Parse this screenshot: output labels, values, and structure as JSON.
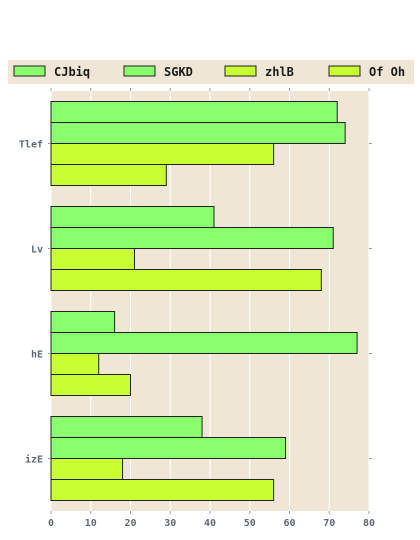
{
  "chart_data": {
    "type": "bar",
    "orientation": "horizontal",
    "categories": [
      "Tlef",
      "Lv",
      "hE",
      "izE"
    ],
    "series": [
      {
        "name": "CJbiq",
        "values": [
          72,
          41,
          16,
          38
        ],
        "color": "#8aff6e"
      },
      {
        "name": "SGKD",
        "values": [
          74,
          71,
          77,
          59
        ],
        "color": "#8aff6e"
      },
      {
        "name": "zhlB",
        "values": [
          56,
          21,
          12,
          18
        ],
        "color": "#c8ff33"
      },
      {
        "name": "Of Oh",
        "values": [
          29,
          68,
          20,
          56
        ],
        "color": "#c8ff33"
      }
    ],
    "xlim": [
      0,
      80
    ],
    "xticks": [
      0,
      10,
      20,
      30,
      40,
      50,
      60,
      70,
      80
    ],
    "grid": true,
    "legend_position": "top",
    "plot_background": "#efe6d5",
    "legend_background": "#efe6d5"
  }
}
